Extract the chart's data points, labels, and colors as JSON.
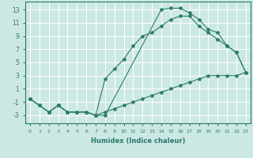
{
  "bg_color": "#cce8e4",
  "line_color": "#2a7a6a",
  "grid_color": "#ffffff",
  "xlim": [
    -0.5,
    23.5
  ],
  "ylim": [
    -4.2,
    14.2
  ],
  "xticks": [
    0,
    1,
    2,
    3,
    4,
    5,
    6,
    7,
    8,
    9,
    10,
    11,
    12,
    13,
    14,
    15,
    16,
    17,
    18,
    19,
    20,
    21,
    22,
    23
  ],
  "yticks": [
    -3,
    -1,
    1,
    3,
    5,
    7,
    9,
    11,
    13
  ],
  "xlabel": "Humidex (Indice chaleur)",
  "curve_top": {
    "x": [
      0,
      1,
      2,
      3,
      4,
      5,
      6,
      7,
      8,
      14,
      15,
      16,
      17,
      18,
      19,
      20,
      21,
      22,
      23
    ],
    "y": [
      -0.5,
      -1.5,
      -2.5,
      -1.5,
      -2.5,
      -2.5,
      -2.5,
      -3.0,
      -3.0,
      13.0,
      13.2,
      13.2,
      12.5,
      11.5,
      10.0,
      9.5,
      7.5,
      6.5,
      3.5
    ]
  },
  "curve_mid": {
    "x": [
      0,
      1,
      2,
      3,
      4,
      5,
      6,
      7,
      8,
      9,
      10,
      11,
      12,
      13,
      14,
      15,
      16,
      17,
      18,
      19,
      20,
      21,
      22,
      23
    ],
    "y": [
      -0.5,
      -1.5,
      -2.5,
      -1.5,
      -2.5,
      -2.5,
      -2.5,
      -3.0,
      2.5,
      4.0,
      5.5,
      7.5,
      9.0,
      9.5,
      10.5,
      11.5,
      12.0,
      12.0,
      10.5,
      9.5,
      8.5,
      7.5,
      6.5,
      3.5
    ]
  },
  "curve_bot": {
    "x": [
      0,
      1,
      2,
      3,
      4,
      5,
      6,
      7,
      8,
      9,
      10,
      11,
      12,
      13,
      14,
      15,
      16,
      17,
      18,
      19,
      20,
      21,
      22,
      23
    ],
    "y": [
      -0.5,
      -1.5,
      -2.5,
      -1.5,
      -2.5,
      -2.5,
      -2.5,
      -3.0,
      -2.5,
      -2.0,
      -1.5,
      -1.0,
      -0.5,
      0.0,
      0.5,
      1.0,
      1.5,
      2.0,
      2.5,
      3.0,
      3.0,
      3.0,
      3.0,
      3.5
    ]
  }
}
